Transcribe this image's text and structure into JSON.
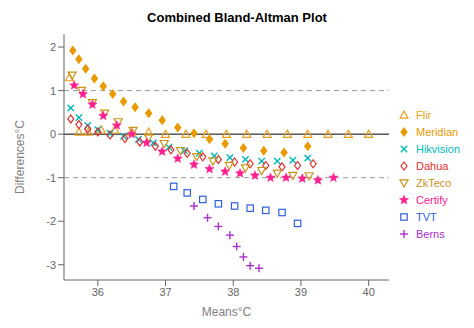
{
  "chart_data": {
    "type": "scatter",
    "title": "Combined Bland-Altman Plot",
    "x_label": "Means°C",
    "y_label": "Differences°C",
    "xlim": [
      35.5,
      40.3
    ],
    "ylim": [
      -3.35,
      2.3
    ],
    "xticks": [
      36,
      37,
      38,
      39,
      40
    ],
    "yticks": [
      -3,
      -2,
      -1,
      0,
      1,
      2
    ],
    "grid": false,
    "legend": "right",
    "hlines": [
      0,
      1,
      -1
    ],
    "series": [
      {
        "name": "Flir",
        "color": "#E8A020",
        "marker": "triangle_open",
        "x": [
          35.58,
          35.72,
          35.86,
          36.05,
          36.25,
          36.5,
          36.75,
          37.0,
          37.3,
          37.6,
          37.9,
          38.2,
          38.5,
          38.8,
          39.1,
          39.4,
          39.7,
          40.0
        ],
        "values": [
          1.3,
          0.05,
          0.05,
          0.1,
          0.1,
          0.05,
          0.05,
          0.0,
          0.0,
          0.0,
          0.0,
          0.0,
          0.0,
          0.0,
          0.0,
          0.0,
          0.0,
          0.0
        ]
      },
      {
        "name": "Meridian",
        "color": "#E89A00",
        "marker": "diamond",
        "x": [
          35.63,
          35.72,
          35.82,
          35.95,
          36.08,
          36.22,
          36.38,
          36.55,
          36.75,
          36.95,
          37.18,
          37.42,
          37.65,
          37.88,
          38.15,
          38.45,
          38.75,
          39.1
        ],
        "values": [
          1.92,
          1.72,
          1.5,
          1.28,
          1.1,
          0.92,
          0.75,
          0.62,
          0.48,
          0.32,
          0.15,
          0.02,
          -0.12,
          -0.22,
          -0.32,
          -0.38,
          -0.42,
          -0.28
        ]
      },
      {
        "name": "Hikvision",
        "color": "#00B8B8",
        "marker": "x",
        "x": [
          35.6,
          35.72,
          35.85,
          36.0,
          36.18,
          36.38,
          36.6,
          36.82,
          37.05,
          37.28,
          37.5,
          37.72,
          37.95,
          38.18,
          38.42,
          38.65,
          38.88,
          39.1
        ],
        "values": [
          0.6,
          0.38,
          0.2,
          0.1,
          0.02,
          -0.05,
          -0.12,
          -0.2,
          -0.3,
          -0.38,
          -0.44,
          -0.5,
          -0.54,
          -0.58,
          -0.62,
          -0.62,
          -0.6,
          -0.55
        ]
      },
      {
        "name": "Dahua",
        "color": "#E03030",
        "marker": "diamond_open",
        "x": [
          35.6,
          35.72,
          35.85,
          36.0,
          36.18,
          36.4,
          36.62,
          36.85,
          37.08,
          37.32,
          37.55,
          37.78,
          38.02,
          38.25,
          38.48,
          38.72,
          38.95,
          39.18
        ],
        "values": [
          0.35,
          0.22,
          0.12,
          0.05,
          -0.02,
          -0.1,
          -0.18,
          -0.28,
          -0.36,
          -0.44,
          -0.52,
          -0.58,
          -0.64,
          -0.68,
          -0.72,
          -0.75,
          -0.72,
          -0.68
        ]
      },
      {
        "name": "ZkTeco",
        "color": "#C8941A",
        "marker": "triangle_down_open",
        "x": [
          35.62,
          35.76,
          35.92,
          36.1,
          36.3,
          36.52,
          36.75,
          36.98,
          37.22,
          37.46,
          37.7,
          37.94,
          38.18,
          38.42,
          38.65,
          38.88,
          39.12
        ],
        "values": [
          1.35,
          1.0,
          0.72,
          0.48,
          0.28,
          0.08,
          -0.08,
          -0.22,
          -0.38,
          -0.52,
          -0.62,
          -0.72,
          -0.78,
          -0.84,
          -0.9,
          -0.95,
          -0.96
        ]
      },
      {
        "name": "Certify",
        "color": "#FF2090",
        "marker": "star",
        "x": [
          35.65,
          35.78,
          35.92,
          36.08,
          36.28,
          36.5,
          36.72,
          36.95,
          37.18,
          37.42,
          37.65,
          37.88,
          38.1,
          38.32,
          38.55,
          38.78,
          39.02,
          39.25,
          39.48
        ],
        "values": [
          1.12,
          0.92,
          0.68,
          0.42,
          0.2,
          0.0,
          -0.2,
          -0.4,
          -0.56,
          -0.7,
          -0.8,
          -0.86,
          -0.9,
          -0.95,
          -1.0,
          -1.0,
          -1.02,
          -1.06,
          -1.0
        ]
      },
      {
        "name": "TVT",
        "color": "#3060DD",
        "marker": "square_open",
        "x": [
          37.12,
          37.32,
          37.55,
          37.78,
          38.02,
          38.25,
          38.48,
          38.72,
          38.95
        ],
        "values": [
          -1.2,
          -1.35,
          -1.5,
          -1.6,
          -1.65,
          -1.7,
          -1.75,
          -1.8,
          -2.05
        ]
      },
      {
        "name": "Berns",
        "color": "#AA30CC",
        "marker": "plus",
        "x": [
          37.42,
          37.62,
          37.78,
          37.95,
          38.05,
          38.15,
          38.25,
          38.38
        ],
        "values": [
          -1.65,
          -1.92,
          -2.12,
          -2.32,
          -2.58,
          -2.82,
          -3.02,
          -3.08
        ]
      }
    ]
  }
}
